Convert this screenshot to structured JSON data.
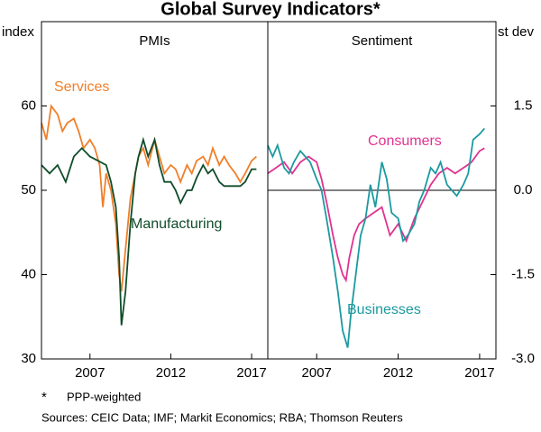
{
  "title": "Global Survey Indicators*",
  "footnote_marker": "*",
  "footnote": "PPP-weighted",
  "sources": "Sources: CEIC Data; IMF; Markit Economics; RBA; Thomson Reuters",
  "chart_data": [
    {
      "type": "line",
      "title": "PMIs",
      "ylabel": "index",
      "yaxis_side": "left",
      "xlim": [
        2004,
        2018
      ],
      "xticks": [
        2007,
        2012,
        2017
      ],
      "ylim": [
        30,
        70
      ],
      "yticks": [
        30,
        40,
        50,
        60
      ],
      "series": [
        {
          "name": "Services",
          "color": "#f07f2a",
          "x": [
            2004.0,
            2004.3,
            2004.6,
            2005.0,
            2005.3,
            2005.6,
            2006.0,
            2006.3,
            2006.6,
            2007.0,
            2007.3,
            2007.6,
            2007.8,
            2008.0,
            2008.3,
            2008.6,
            2008.8,
            2008.95,
            2009.2,
            2009.5,
            2009.8,
            2010.0,
            2010.3,
            2010.6,
            2011.0,
            2011.3,
            2011.6,
            2012.0,
            2012.3,
            2012.6,
            2013.0,
            2013.3,
            2013.6,
            2014.0,
            2014.3,
            2014.6,
            2015.0,
            2015.3,
            2015.6,
            2016.0,
            2016.3,
            2016.6,
            2017.0,
            2017.3
          ],
          "values": [
            58,
            56,
            60,
            59,
            57,
            58,
            58.5,
            57,
            55,
            56,
            55,
            53,
            48,
            52,
            50,
            46,
            40,
            38,
            43,
            49,
            52,
            54,
            55,
            53,
            56,
            54,
            52,
            53,
            52.5,
            51,
            53,
            52,
            53.5,
            54,
            53,
            55,
            53,
            54,
            53,
            52,
            51,
            52,
            53.5,
            54
          ]
        },
        {
          "name": "Manufacturing",
          "color": "#0f4d2b",
          "x": [
            2004.0,
            2004.5,
            2005.0,
            2005.5,
            2006.0,
            2006.5,
            2007.0,
            2007.5,
            2008.0,
            2008.3,
            2008.6,
            2008.8,
            2008.95,
            2009.2,
            2009.5,
            2009.8,
            2010.0,
            2010.3,
            2010.6,
            2011.0,
            2011.3,
            2011.6,
            2012.0,
            2012.3,
            2012.6,
            2013.0,
            2013.3,
            2013.6,
            2014.0,
            2014.3,
            2014.6,
            2015.0,
            2015.3,
            2015.6,
            2016.0,
            2016.3,
            2016.6,
            2017.0,
            2017.3
          ],
          "values": [
            53,
            52,
            53,
            51,
            54,
            55,
            54,
            53.5,
            53,
            51,
            48,
            42,
            34,
            38,
            46,
            52,
            54,
            56,
            54,
            56,
            53,
            51,
            51,
            50,
            48.5,
            50,
            50,
            51.5,
            53,
            52,
            52.5,
            51,
            50.5,
            50.5,
            50.5,
            50.5,
            51,
            52.5,
            52.5
          ]
        }
      ]
    },
    {
      "type": "line",
      "title": "Sentiment",
      "ylabel": "st dev",
      "yaxis_side": "right",
      "xlim": [
        2004,
        2018
      ],
      "xticks": [
        2007,
        2012,
        2017
      ],
      "ylim": [
        -3,
        3
      ],
      "yticks": [
        {
          "value": -3,
          "label": "-3.0"
        },
        {
          "value": -1.5,
          "label": "-1.5"
        },
        {
          "value": 0,
          "label": "0.0"
        },
        {
          "value": 1.5,
          "label": "1.5"
        }
      ],
      "series": [
        {
          "name": "Consumers",
          "color": "#e0338f",
          "x": [
            2004.0,
            2004.5,
            2005.0,
            2005.5,
            2006.0,
            2006.5,
            2007.0,
            2007.3,
            2007.6,
            2008.0,
            2008.3,
            2008.6,
            2008.8,
            2009.0,
            2009.3,
            2009.6,
            2010.0,
            2010.5,
            2011.0,
            2011.5,
            2012.0,
            2012.5,
            2013.0,
            2013.5,
            2014.0,
            2014.5,
            2015.0,
            2015.5,
            2016.0,
            2016.5,
            2017.0,
            2017.3
          ],
          "values": [
            0.3,
            0.4,
            0.5,
            0.3,
            0.5,
            0.6,
            0.5,
            0.2,
            -0.2,
            -0.8,
            -1.2,
            -1.5,
            -1.6,
            -1.2,
            -0.8,
            -0.6,
            -0.5,
            -0.4,
            -0.3,
            -0.8,
            -0.6,
            -0.9,
            -0.5,
            -0.2,
            0.1,
            0.3,
            0.4,
            0.3,
            0.4,
            0.5,
            0.7,
            0.75
          ]
        },
        {
          "name": "Businesses",
          "color": "#1b9aa0",
          "x": [
            2004.0,
            2004.3,
            2004.6,
            2005.0,
            2005.3,
            2005.6,
            2006.0,
            2006.3,
            2006.6,
            2007.0,
            2007.3,
            2007.6,
            2008.0,
            2008.3,
            2008.6,
            2008.9,
            2009.1,
            2009.4,
            2009.7,
            2010.0,
            2010.3,
            2010.6,
            2011.0,
            2011.3,
            2011.6,
            2012.0,
            2012.3,
            2012.6,
            2013.0,
            2013.3,
            2013.6,
            2014.0,
            2014.3,
            2014.6,
            2015.0,
            2015.3,
            2015.6,
            2016.0,
            2016.3,
            2016.6,
            2017.0,
            2017.3
          ],
          "values": [
            0.8,
            0.6,
            0.8,
            0.4,
            0.3,
            0.5,
            0.7,
            0.6,
            0.5,
            0.2,
            0.0,
            -0.5,
            -1.2,
            -1.8,
            -2.5,
            -2.8,
            -2.2,
            -1.5,
            -0.8,
            -0.5,
            0.1,
            -0.3,
            0.5,
            0.2,
            -0.4,
            -0.5,
            -0.9,
            -0.8,
            -0.6,
            -0.2,
            0.0,
            0.4,
            0.3,
            0.5,
            0.1,
            0.0,
            -0.1,
            0.1,
            0.3,
            0.9,
            1.0,
            1.1
          ]
        }
      ]
    }
  ]
}
